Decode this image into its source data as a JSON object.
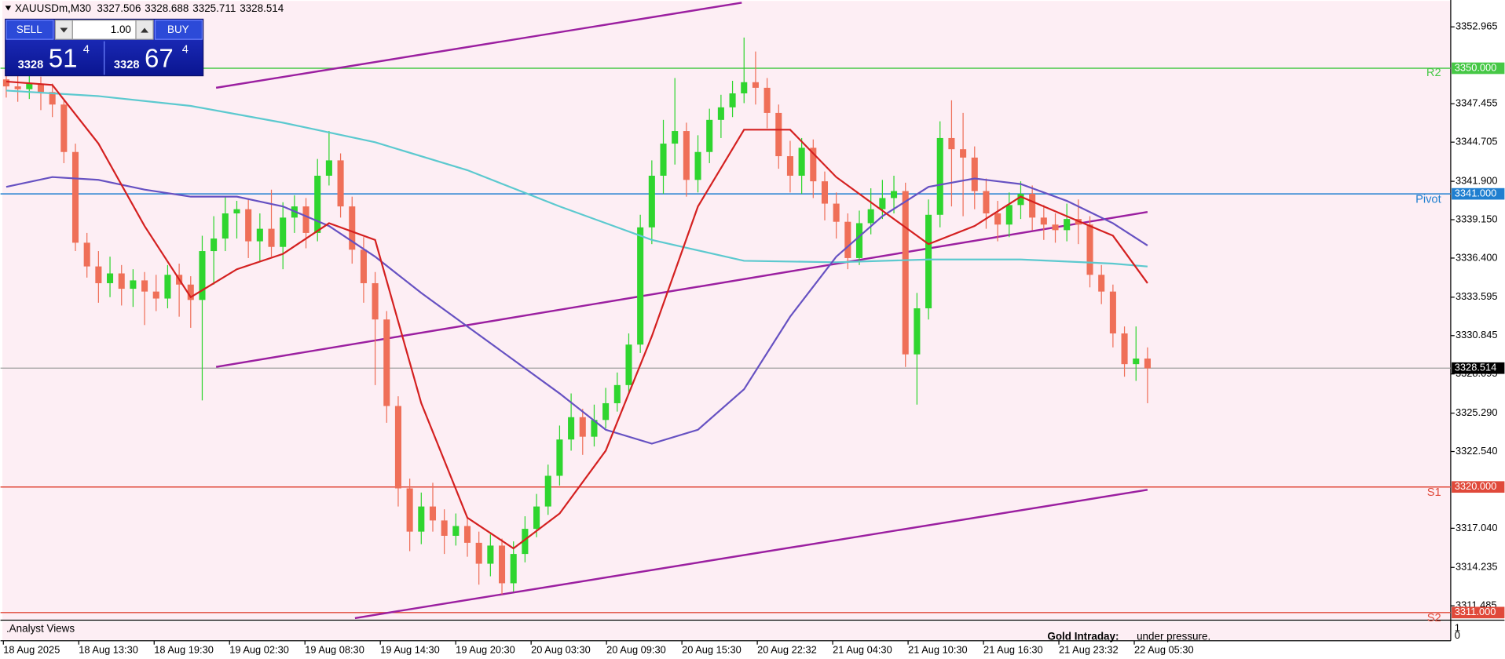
{
  "header": {
    "symbol": "XAUUSDm,M30",
    "quote": [
      3327.506,
      3328.688,
      3325.711,
      3328.514
    ]
  },
  "trade_panel": {
    "sell": "SELL",
    "lot": "1.00",
    "buy": "BUY",
    "bid": {
      "big": "3328",
      "pips": "51",
      "point": "4"
    },
    "ask": {
      "big": "3328",
      "pips": "67",
      "point": "4"
    }
  },
  "indicator": {
    "title": ".Analyst Views",
    "text": "Gold Intraday:",
    "text2": "under pressure.",
    "yticks": [
      1,
      0
    ]
  },
  "chart_data": {
    "type": "candlestick",
    "up_color": "#2fd52f",
    "down_color": "#ef6f58",
    "background": "#fdeef4",
    "xlim": [
      -0.5,
      125.3
    ],
    "ylim": [
      3310.56,
      3354.89
    ],
    "xtick_labels": [
      "18 Aug 2025",
      "18 Aug 13:30",
      "18 Aug 19:30",
      "19 Aug 02:30",
      "19 Aug 08:30",
      "19 Aug 14:30",
      "19 Aug 20:30",
      "20 Aug 03:30",
      "20 Aug 09:30",
      "20 Aug 15:30",
      "20 Aug 22:32",
      "21 Aug 04:30",
      "21 Aug 10:30",
      "21 Aug 16:30",
      "21 Aug 23:32",
      "22 Aug 05:30"
    ],
    "yticks": [
      3352.965,
      3347.455,
      3344.705,
      {
        "value": 3341.9,
        "label": "3341.900"
      },
      {
        "value": 3339.15,
        "label": "3339.150"
      },
      {
        "value": 3336.4,
        "label": "3336.400"
      },
      3333.595,
      3330.845,
      3328.095,
      {
        "value": 3325.29,
        "label": "3325.290"
      },
      {
        "value": 3322.54,
        "label": "3322.540"
      },
      {
        "value": 3317.04,
        "label": "3317.040"
      },
      3314.235,
      3311.485
    ],
    "open": [
      3349.2,
      3348.7,
      3348.5,
      3348.9,
      3348.3,
      3347.4,
      3344.0,
      3337.5,
      3335.8,
      3334.6,
      3335.3,
      3334.2,
      3334.8,
      3334.0,
      3333.5,
      3335.2,
      3334.5,
      3333.4,
      3336.9,
      3337.8,
      3339.6,
      3339.9,
      3337.6,
      3338.5,
      3337.2,
      3339.3,
      3340.1,
      3338.2,
      3342.3,
      3343.4,
      3340.1,
      3337.0,
      3334.6,
      3332.0,
      3325.8,
      3319.9,
      3316.8,
      3318.6,
      3317.6,
      3316.5,
      3317.2,
      3316.0,
      3314.5,
      3315.8,
      3313.1,
      3315.2,
      3317.0,
      3318.6,
      3320.8,
      3323.4,
      3325.0,
      3323.6,
      3324.8,
      3326.0,
      3327.3,
      3330.2,
      3338.6,
      3342.3,
      3344.6,
      3345.5,
      3342.0,
      3344.0,
      3346.3,
      3347.2,
      3348.2,
      3349.0,
      3348.6,
      3346.8,
      3343.7,
      3342.3,
      3344.3,
      3341.9,
      3340.3,
      3339.0,
      3336.4,
      3338.9,
      3339.9,
      3340.7,
      3341.2,
      3329.5,
      3332.8,
      3339.5,
      3345.0,
      3344.2,
      3343.6,
      3341.2,
      3339.6,
      3338.8,
      3340.2,
      3341.0,
      3339.3,
      3338.8,
      3338.4,
      3339.2,
      3338.8,
      3335.2,
      3334.0,
      3331.0,
      3328.8,
      3329.2
    ],
    "high": [
      3349.8,
      3349.5,
      3349.6,
      3349.4,
      3348.9,
      3347.8,
      3344.6,
      3338.2,
      3336.9,
      3336.5,
      3335.9,
      3335.6,
      3335.4,
      3335.2,
      3335.9,
      3336.0,
      3335.1,
      3338.0,
      3339.4,
      3340.8,
      3340.5,
      3340.6,
      3339.6,
      3341.3,
      3340.4,
      3340.9,
      3340.7,
      3343.5,
      3345.5,
      3343.9,
      3340.8,
      3337.9,
      3335.4,
      3332.6,
      3326.5,
      3320.6,
      3319.6,
      3320.3,
      3318.4,
      3318.1,
      3317.9,
      3316.8,
      3316.6,
      3316.3,
      3316.1,
      3317.9,
      3319.5,
      3321.6,
      3324.4,
      3326.7,
      3325.6,
      3325.9,
      3327.1,
      3328.2,
      3331.0,
      3339.5,
      3343.4,
      3346.3,
      3349.3,
      3346.1,
      3345.2,
      3347.1,
      3348.1,
      3349.1,
      3352.2,
      3351.2,
      3349.3,
      3347.4,
      3344.8,
      3345.0,
      3344.9,
      3342.6,
      3341.1,
      3339.6,
      3339.8,
      3341.4,
      3342.0,
      3342.3,
      3341.8,
      3333.9,
      3340.6,
      3346.2,
      3347.7,
      3346.8,
      3344.4,
      3342.1,
      3340.5,
      3341.1,
      3341.9,
      3341.6,
      3340.2,
      3339.6,
      3340.3,
      3340.6,
      3339.4,
      3335.9,
      3334.5,
      3331.5,
      3331.5,
      3330.0
    ],
    "low": [
      3347.9,
      3347.6,
      3347.8,
      3347.0,
      3346.5,
      3343.2,
      3336.9,
      3335.0,
      3333.2,
      3333.6,
      3333.0,
      3332.9,
      3331.6,
      3332.6,
      3332.8,
      3332.2,
      3331.4,
      3326.2,
      3334.5,
      3336.9,
      3337.8,
      3336.4,
      3336.2,
      3336.5,
      3335.6,
      3338.2,
      3337.1,
      3337.6,
      3341.6,
      3339.3,
      3336.0,
      3333.2,
      3327.3,
      3324.6,
      3318.6,
      3315.4,
      3315.9,
      3316.8,
      3315.2,
      3315.8,
      3315.0,
      3313.0,
      3313.6,
      3312.3,
      3312.5,
      3314.6,
      3316.4,
      3318.0,
      3320.1,
      3322.6,
      3322.3,
      3322.9,
      3324.2,
      3325.4,
      3326.8,
      3329.6,
      3337.4,
      3341.0,
      3343.1,
      3340.8,
      3341.1,
      3343.2,
      3345.0,
      3346.5,
      3347.5,
      3347.4,
      3345.7,
      3342.8,
      3341.1,
      3341.0,
      3340.7,
      3339.1,
      3337.8,
      3335.6,
      3335.9,
      3338.1,
      3339.2,
      3339.6,
      3328.6,
      3325.9,
      3332.0,
      3338.6,
      3340.1,
      3339.4,
      3339.9,
      3338.5,
      3337.6,
      3337.9,
      3339.2,
      3338.4,
      3337.7,
      3337.5,
      3337.6,
      3337.4,
      3334.3,
      3333.1,
      3330.0,
      3327.9,
      3327.6,
      3326.0
    ],
    "close": [
      3348.7,
      3348.5,
      3348.9,
      3348.3,
      3347.4,
      3344.0,
      3337.5,
      3335.8,
      3334.6,
      3335.3,
      3334.2,
      3334.8,
      3334.0,
      3333.5,
      3335.2,
      3334.5,
      3333.4,
      3336.9,
      3337.8,
      3339.6,
      3339.9,
      3337.6,
      3338.5,
      3337.2,
      3339.3,
      3340.1,
      3338.2,
      3342.3,
      3343.4,
      3340.1,
      3337.0,
      3334.6,
      3332.0,
      3325.8,
      3319.9,
      3316.8,
      3318.6,
      3317.6,
      3316.5,
      3317.2,
      3316.0,
      3314.5,
      3315.8,
      3313.1,
      3315.2,
      3317.0,
      3318.6,
      3320.8,
      3323.4,
      3325.0,
      3323.6,
      3324.8,
      3326.0,
      3327.3,
      3330.2,
      3338.6,
      3342.3,
      3344.6,
      3345.5,
      3342.0,
      3344.0,
      3346.3,
      3347.2,
      3348.2,
      3349.0,
      3348.6,
      3346.8,
      3343.7,
      3342.3,
      3344.3,
      3341.9,
      3340.3,
      3339.0,
      3336.4,
      3338.9,
      3339.9,
      3340.7,
      3341.2,
      3329.5,
      3332.8,
      3339.5,
      3345.0,
      3344.2,
      3343.6,
      3341.2,
      3339.6,
      3338.8,
      3340.2,
      3341.0,
      3339.3,
      3338.8,
      3338.4,
      3339.2,
      3338.8,
      3335.2,
      3334.0,
      3331.0,
      3328.8,
      3329.2,
      3328.5
    ],
    "lines": [
      {
        "color": "#5cc9cf",
        "x": [
          0,
          8,
          16,
          24,
          32,
          40,
          48,
          56,
          64,
          72,
          80,
          88,
          96,
          99
        ],
        "values": [
          3348.4,
          3348.0,
          3347.3,
          3346.1,
          3344.7,
          3342.7,
          3340.1,
          3337.7,
          3336.2,
          3336.1,
          3336.3,
          3336.3,
          3336.0,
          3335.8
        ]
      },
      {
        "color": "#6651c2",
        "x": [
          0,
          4,
          8,
          12,
          16,
          20,
          24,
          28,
          32,
          36,
          40,
          44,
          48,
          52,
          56,
          60,
          64,
          68,
          72,
          76,
          80,
          84,
          88,
          92,
          96,
          99
        ],
        "values": [
          3341.5,
          3342.2,
          3342.0,
          3341.3,
          3340.8,
          3340.8,
          3340.1,
          3338.7,
          3336.5,
          3333.9,
          3331.5,
          3329.1,
          3326.7,
          3324.1,
          3323.1,
          3324.1,
          3327.0,
          3332.2,
          3336.5,
          3339.4,
          3341.5,
          3342.1,
          3341.7,
          3340.5,
          3338.9,
          3337.3
        ]
      },
      {
        "color": "#d42020",
        "x": [
          0,
          4,
          8,
          12,
          16,
          20,
          24,
          28,
          32,
          36,
          40,
          44,
          48,
          52,
          56,
          60,
          64,
          68,
          72,
          76,
          80,
          84,
          88,
          92,
          96,
          99
        ],
        "values": [
          3349.05,
          3348.8,
          3344.6,
          3338.7,
          3333.6,
          3335.6,
          3336.7,
          3338.9,
          3337.7,
          3326.0,
          3317.8,
          3315.6,
          3318.1,
          3322.6,
          3330.8,
          3340.1,
          3345.6,
          3345.6,
          3342.2,
          3339.8,
          3337.4,
          3338.7,
          3340.8,
          3339.4,
          3338.0,
          3334.6
        ]
      }
    ],
    "channels": [
      {
        "color": "#9b1fa0",
        "x": [
          18.2,
          63.8
        ],
        "values": [
          3348.6,
          3354.7
        ]
      },
      {
        "color": "#9b1fa0",
        "x": [
          18.2,
          99
        ],
        "values": [
          3328.6,
          3339.7
        ]
      },
      {
        "color": "#9b1fa0",
        "x": [
          30.25,
          99
        ],
        "values": [
          3310.6,
          3319.8
        ]
      }
    ],
    "levels": [
      {
        "name": "R2",
        "value": 3350,
        "label": "3350.000",
        "color": "#46c846"
      },
      {
        "name": "Pivot",
        "value": 3341,
        "label": "3341.000",
        "color": "#1f7fd0"
      },
      {
        "name": "S1",
        "value": 3320,
        "label": "3320.000",
        "color": "#e0493a"
      },
      {
        "name": "S2",
        "value": 3311,
        "label": "3311.000",
        "color": "#e0493a"
      }
    ],
    "last_price": 3328.514
  }
}
